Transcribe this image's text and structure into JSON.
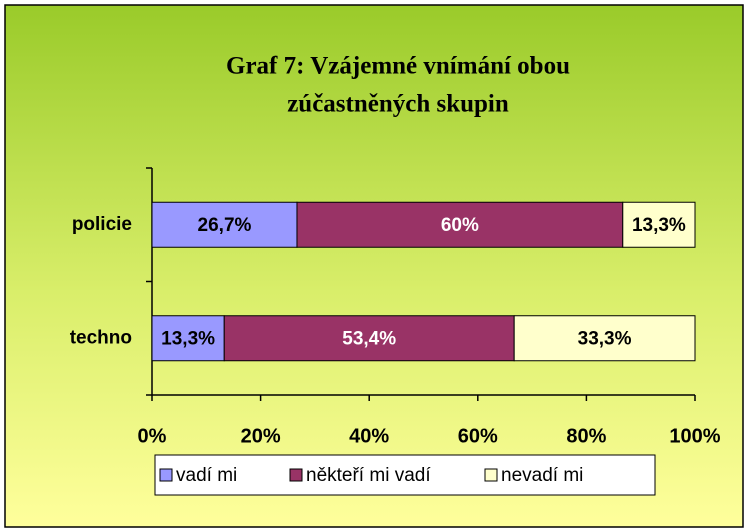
{
  "chart_data": {
    "type": "stacked-barh",
    "title": [
      "Graf 7: Vzájemné vnímání obou",
      "zúčastněných skupin"
    ],
    "categories": [
      "policie",
      "techno"
    ],
    "series": [
      {
        "name": "vadí mi",
        "color": "#9999ff",
        "values": [
          26.7,
          13.3
        ],
        "value_labels": [
          "26,7%",
          "13,3%"
        ]
      },
      {
        "name": "někteří mi vadí",
        "color": "#993366",
        "values": [
          60,
          53.4
        ],
        "value_labels": [
          "60%",
          "53,4%"
        ]
      },
      {
        "name": "nevadí mi",
        "color": "#ffffcc",
        "values": [
          13.3,
          33.3
        ],
        "value_labels": [
          "13,3%",
          "33,3%"
        ]
      }
    ],
    "xlim": [
      0,
      100
    ],
    "xticks": [
      {
        "value": 0,
        "label": "0%"
      },
      {
        "value": 20,
        "label": "20%"
      },
      {
        "value": 40,
        "label": "40%"
      },
      {
        "value": 60,
        "label": "60%"
      },
      {
        "value": 80,
        "label": "80%"
      },
      {
        "value": 100,
        "label": "100%"
      }
    ],
    "grid": false,
    "legend": "bottom"
  }
}
